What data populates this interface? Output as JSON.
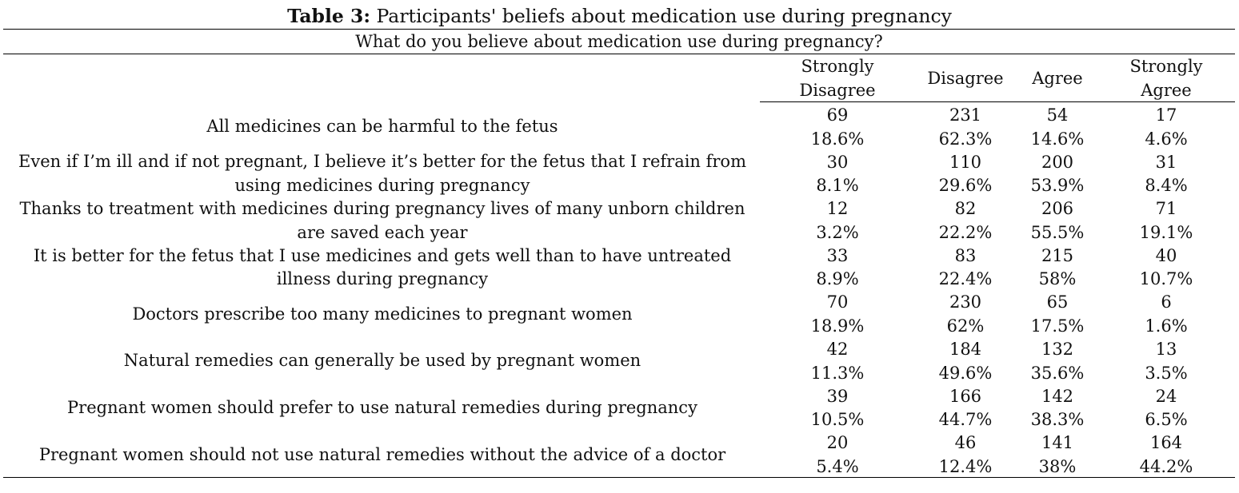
{
  "table": {
    "title_bold": "Table 3:",
    "title_rest": " Participants' beliefs about medication use during pregnancy",
    "question": "What do you believe about medication use during pregnancy?",
    "columns": [
      [
        "Strongly",
        "Disagree"
      ],
      [
        "Disagree"
      ],
      [
        "Agree"
      ],
      [
        "Strongly",
        "Agree"
      ]
    ],
    "rows": [
      {
        "label": "All medicines can be harmful to the fetus",
        "counts": [
          "69",
          "231",
          "54",
          "17"
        ],
        "percents": [
          "18.6%",
          "62.3%",
          "14.6%",
          "4.6%"
        ]
      },
      {
        "label": "Even if I’m ill and if not pregnant, I believe it’s better for the fetus that I refrain from using medicines during pregnancy",
        "counts": [
          "30",
          "110",
          "200",
          "31"
        ],
        "percents": [
          "8.1%",
          "29.6%",
          "53.9%",
          "8.4%"
        ]
      },
      {
        "label": "Thanks to treatment with medicines during pregnancy lives of many unborn children are saved each year",
        "counts": [
          "12",
          "82",
          "206",
          "71"
        ],
        "percents": [
          "3.2%",
          "22.2%",
          "55.5%",
          "19.1%"
        ]
      },
      {
        "label": "It is better for the fetus that I use medicines and gets well than to have untreated illness during pregnancy",
        "counts": [
          "33",
          "83",
          "215",
          "40"
        ],
        "percents": [
          "8.9%",
          "22.4%",
          "58%",
          "10.7%"
        ]
      },
      {
        "label": "Doctors prescribe too many medicines to pregnant women",
        "counts": [
          "70",
          "230",
          "65",
          "6"
        ],
        "percents": [
          "18.9%",
          "62%",
          "17.5%",
          "1.6%"
        ]
      },
      {
        "label": "Natural remedies can generally be used by pregnant women",
        "counts": [
          "42",
          "184",
          "132",
          "13"
        ],
        "percents": [
          "11.3%",
          "49.6%",
          "35.6%",
          "3.5%"
        ]
      },
      {
        "label": "Pregnant women should prefer to use natural remedies during pregnancy",
        "counts": [
          "39",
          "166",
          "142",
          "24"
        ],
        "percents": [
          "10.5%",
          "44.7%",
          "38.3%",
          "6.5%"
        ]
      },
      {
        "label": "Pregnant women should not use natural remedies without the advice of a doctor",
        "counts": [
          "20",
          "46",
          "141",
          "164"
        ],
        "percents": [
          "5.4%",
          "12.4%",
          "38%",
          "44.2%"
        ]
      }
    ]
  }
}
